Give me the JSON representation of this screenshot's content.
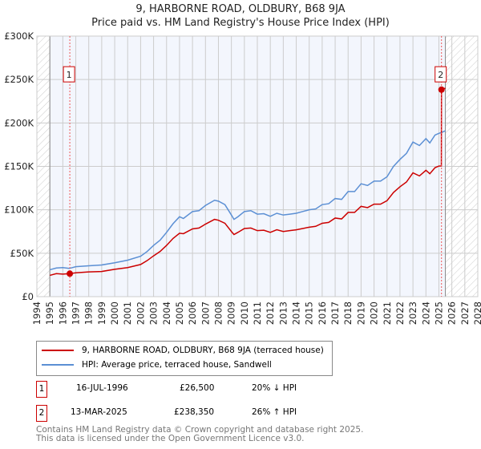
{
  "chart_data": {
    "type": "line",
    "title": "9, HARBORNE ROAD, OLDBURY, B68 9JA",
    "subtitle": "Price paid vs. HM Land Registry's House Price Index (HPI)",
    "xlim": [
      1994,
      2028
    ],
    "ylim": [
      0,
      300000
    ],
    "x_ticks": [
      "1994",
      "1995",
      "1996",
      "1997",
      "1998",
      "1999",
      "2000",
      "2001",
      "2002",
      "2003",
      "2004",
      "2005",
      "2006",
      "2007",
      "2008",
      "2009",
      "2010",
      "2011",
      "2012",
      "2013",
      "2014",
      "2015",
      "2016",
      "2017",
      "2018",
      "2019",
      "2020",
      "2021",
      "2022",
      "2023",
      "2024",
      "2025",
      "2026",
      "2027",
      "2028"
    ],
    "y_ticks": [
      {
        "v": 0,
        "label": "£0"
      },
      {
        "v": 50000,
        "label": "£50K"
      },
      {
        "v": 100000,
        "label": "£100K"
      },
      {
        "v": 150000,
        "label": "£150K"
      },
      {
        "v": 200000,
        "label": "£200K"
      },
      {
        "v": 250000,
        "label": "£250K"
      },
      {
        "v": 300000,
        "label": "£300K"
      }
    ],
    "grid": true,
    "data_range": [
      1995,
      2025.5
    ],
    "series": [
      {
        "name": "9, HARBORNE ROAD, OLDBURY, B68 9JA (terraced house)",
        "color": "#cc0000",
        "x": [
          1995,
          1995.5,
          1996,
          1996.54,
          1997,
          1998,
          1999,
          2000,
          2001,
          2002,
          2002.5,
          2003,
          2003.5,
          2004,
          2004.5,
          2005,
          2005.3,
          2006,
          2006.5,
          2007,
          2007.7,
          2008,
          2008.5,
          2009,
          2009.2,
          2009.5,
          2010,
          2010.5,
          2011,
          2011.5,
          2012,
          2012.5,
          2013,
          2013.5,
          2014,
          2014.5,
          2015,
          2015.5,
          2016,
          2016.5,
          2017,
          2017.5,
          2018,
          2018.5,
          2019,
          2019.5,
          2020,
          2020.5,
          2021,
          2021.5,
          2022,
          2022.5,
          2023,
          2023.5,
          2024,
          2024.3,
          2024.7,
          2025,
          2025.19,
          2025.2,
          2025.5
        ],
        "y": [
          24500,
          26500,
          26000,
          26500,
          27500,
          28500,
          29000,
          31500,
          33500,
          37000,
          41500,
          47000,
          52000,
          59000,
          67000,
          73000,
          72500,
          78000,
          79000,
          83500,
          89000,
          88000,
          84500,
          75000,
          71500,
          74000,
          78500,
          79000,
          76000,
          76500,
          74000,
          77000,
          75000,
          76000,
          77000,
          78500,
          80000,
          81000,
          84500,
          85500,
          90500,
          89500,
          97000,
          97000,
          104000,
          102500,
          106500,
          106500,
          110500,
          120000,
          126500,
          132000,
          142500,
          139000,
          145500,
          141500,
          148500,
          150400,
          150500,
          238350,
          240000
        ]
      },
      {
        "name": "HPI: Average price, terraced house, Sandwell",
        "color": "#5b8fd4",
        "x": [
          1995,
          1995.5,
          1996,
          1996.5,
          1997,
          1998,
          1999,
          2000,
          2001,
          2002,
          2002.5,
          2003,
          2003.5,
          2004,
          2004.5,
          2005,
          2005.3,
          2006,
          2006.5,
          2007,
          2007.7,
          2008,
          2008.5,
          2009,
          2009.2,
          2009.5,
          2010,
          2010.5,
          2011,
          2011.5,
          2012,
          2012.5,
          2013,
          2013.5,
          2014,
          2014.5,
          2015,
          2015.5,
          2016,
          2016.5,
          2017,
          2017.5,
          2018,
          2018.5,
          2019,
          2019.5,
          2020,
          2020.5,
          2021,
          2021.5,
          2022,
          2022.5,
          2023,
          2023.5,
          2024,
          2024.3,
          2024.7,
          2025,
          2025.2,
          2025.5
        ],
        "y": [
          31000,
          33000,
          33500,
          32500,
          34500,
          35500,
          36500,
          39000,
          42000,
          46500,
          52000,
          59000,
          65000,
          74000,
          84000,
          92000,
          90000,
          98000,
          99000,
          105000,
          111000,
          110000,
          106000,
          94000,
          89000,
          92000,
          98000,
          99000,
          95000,
          95500,
          92500,
          96000,
          94000,
          95000,
          96000,
          98000,
          100000,
          101000,
          106000,
          107000,
          113000,
          112000,
          121000,
          121000,
          130000,
          128000,
          133000,
          133000,
          138000,
          150000,
          158000,
          165000,
          178000,
          174000,
          182000,
          177000,
          186000,
          188000,
          189000,
          191000
        ]
      }
    ],
    "annotations": [
      {
        "label": "1",
        "x": 1996.54,
        "y": 26500
      },
      {
        "label": "2",
        "x": 2025.2,
        "y": 238350
      }
    ]
  },
  "transactions": [
    {
      "num": "1",
      "date": "16-JUL-1996",
      "price": "£26,500",
      "hpi": "20% ↓ HPI"
    },
    {
      "num": "2",
      "date": "13-MAR-2025",
      "price": "£238,350",
      "hpi": "26% ↑ HPI"
    }
  ],
  "footer": [
    "Contains HM Land Registry data © Crown copyright and database right 2025.",
    "This data is licensed under the Open Government Licence v3.0."
  ]
}
